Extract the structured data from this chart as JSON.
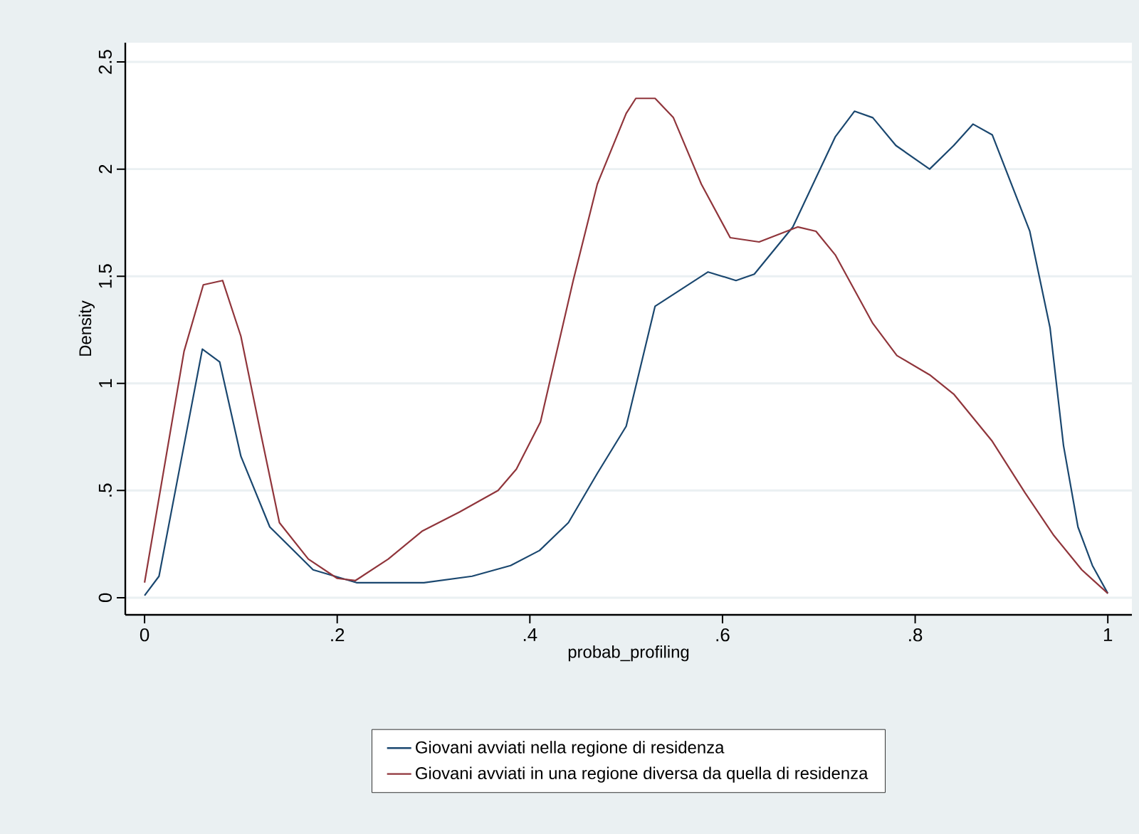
{
  "chart_data": {
    "type": "line",
    "xlabel": "probab_profiling",
    "ylabel": "Density",
    "xlim": [
      -0.02,
      1.025
    ],
    "ylim": [
      -0.08,
      2.59
    ],
    "xticks": [
      0,
      {
        "value": 0.2,
        "label": ".2"
      },
      {
        "value": 0.4,
        "label": ".4"
      },
      {
        "value": 0.6,
        "label": ".6"
      },
      {
        "value": 0.8,
        "label": ".8"
      },
      1
    ],
    "yticks": [
      0,
      {
        "value": 0.5,
        "label": ".5"
      },
      1,
      {
        "value": 1.5,
        "label": "1.5"
      },
      2,
      {
        "value": 2.5,
        "label": "2.5"
      }
    ],
    "grid": "y",
    "legend": "bottom",
    "marker": "none",
    "line_style": "solid",
    "series": [
      {
        "name": "Giovani avviati nella regione di residenza",
        "color": "#1a476f",
        "x": [
          0,
          0.015,
          0.06,
          0.078,
          0.1,
          0.13,
          0.175,
          0.22,
          0.29,
          0.34,
          0.38,
          0.41,
          0.44,
          0.47,
          0.5,
          0.53,
          0.585,
          0.614,
          0.633,
          0.673,
          0.717,
          0.737,
          0.756,
          0.78,
          0.815,
          0.84,
          0.86,
          0.88,
          0.919,
          0.94,
          0.954,
          0.969,
          0.984,
          1.0
        ],
        "values": [
          0.01,
          0.1,
          1.16,
          1.1,
          0.66,
          0.33,
          0.13,
          0.07,
          0.07,
          0.1,
          0.15,
          0.22,
          0.35,
          0.58,
          0.8,
          1.36,
          1.52,
          1.48,
          1.51,
          1.73,
          2.15,
          2.27,
          2.24,
          2.11,
          2.0,
          2.11,
          2.21,
          2.16,
          1.71,
          1.26,
          0.71,
          0.33,
          0.15,
          0.02
        ]
      },
      {
        "name": "Giovani avviati in una regione diversa da quella di residenza",
        "color": "#90353b",
        "x": [
          0,
          0.041,
          0.061,
          0.081,
          0.1,
          0.12,
          0.14,
          0.17,
          0.2,
          0.219,
          0.253,
          0.288,
          0.327,
          0.367,
          0.386,
          0.411,
          0.445,
          0.47,
          0.5,
          0.51,
          0.53,
          0.549,
          0.578,
          0.608,
          0.638,
          0.678,
          0.697,
          0.717,
          0.756,
          0.781,
          0.815,
          0.84,
          0.88,
          0.914,
          0.944,
          0.973,
          1.0
        ],
        "values": [
          0.07,
          1.15,
          1.46,
          1.48,
          1.22,
          0.78,
          0.35,
          0.18,
          0.09,
          0.08,
          0.18,
          0.31,
          0.4,
          0.5,
          0.6,
          0.82,
          1.48,
          1.93,
          2.26,
          2.33,
          2.33,
          2.24,
          1.93,
          1.68,
          1.66,
          1.73,
          1.71,
          1.6,
          1.28,
          1.13,
          1.04,
          0.95,
          0.73,
          0.49,
          0.29,
          0.13,
          0.02
        ]
      }
    ]
  }
}
